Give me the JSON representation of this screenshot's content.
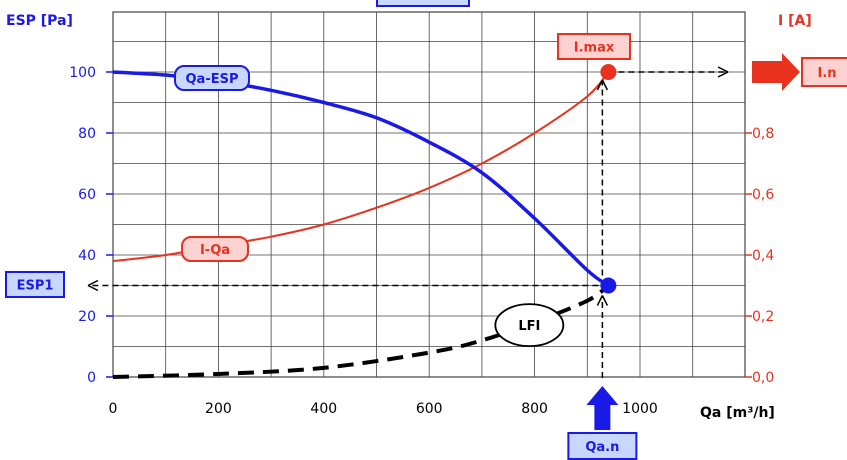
{
  "chart_data": {
    "type": "line",
    "title": "",
    "xlabel": "Qa [m³/h]",
    "ylabel_left": "ESP [Pa]",
    "ylabel_right": "I [A]",
    "xlim": [
      0,
      1200
    ],
    "ylim_left": [
      0,
      120
    ],
    "ylim_right": [
      0,
      1.2
    ],
    "x_ticks": [
      "0",
      "200",
      "400",
      "600",
      "800",
      "1000"
    ],
    "y_ticks_left": [
      "0",
      "20",
      "40",
      "60",
      "80",
      "100"
    ],
    "y_ticks_right": [
      "0,0",
      "0,2",
      "0,4",
      "0,6",
      "0,8"
    ],
    "grid": true,
    "series": [
      {
        "name": "Qa-ESP",
        "axis": "left",
        "style": "solid",
        "x": [
          0,
          100,
          200,
          300,
          400,
          500,
          600,
          700,
          800,
          900,
          940
        ],
        "y": [
          100,
          99,
          97,
          94,
          90,
          85,
          77,
          67,
          52,
          35,
          30
        ]
      },
      {
        "name": "I-Qa",
        "axis": "right",
        "style": "solid",
        "x": [
          0,
          100,
          200,
          300,
          400,
          500,
          600,
          700,
          800,
          900,
          940
        ],
        "y": [
          0.38,
          0.4,
          0.43,
          0.46,
          0.5,
          0.555,
          0.62,
          0.7,
          0.8,
          0.92,
          1.0
        ]
      },
      {
        "name": "LFI",
        "axis": "left",
        "style": "dashed",
        "x": [
          0,
          200,
          400,
          600,
          700,
          800,
          900,
          940
        ],
        "y": [
          0,
          1,
          3,
          8,
          12,
          18,
          25,
          30
        ]
      }
    ],
    "annotations": [
      {
        "label": "I.max",
        "x": 940,
        "y_right": 1.0
      },
      {
        "label": "I.n",
        "y_right": 1.0
      },
      {
        "label": "ESP1",
        "y_left": 30
      },
      {
        "label": "Qa.n",
        "x": 940
      }
    ],
    "colors": {
      "esp": "#1a1ae6",
      "current": "#e8321e",
      "lfi": "#000000",
      "grid": "#444444",
      "box_blue_fill": "#c8d7ff",
      "box_red_fill": "#ffd2d2"
    }
  }
}
